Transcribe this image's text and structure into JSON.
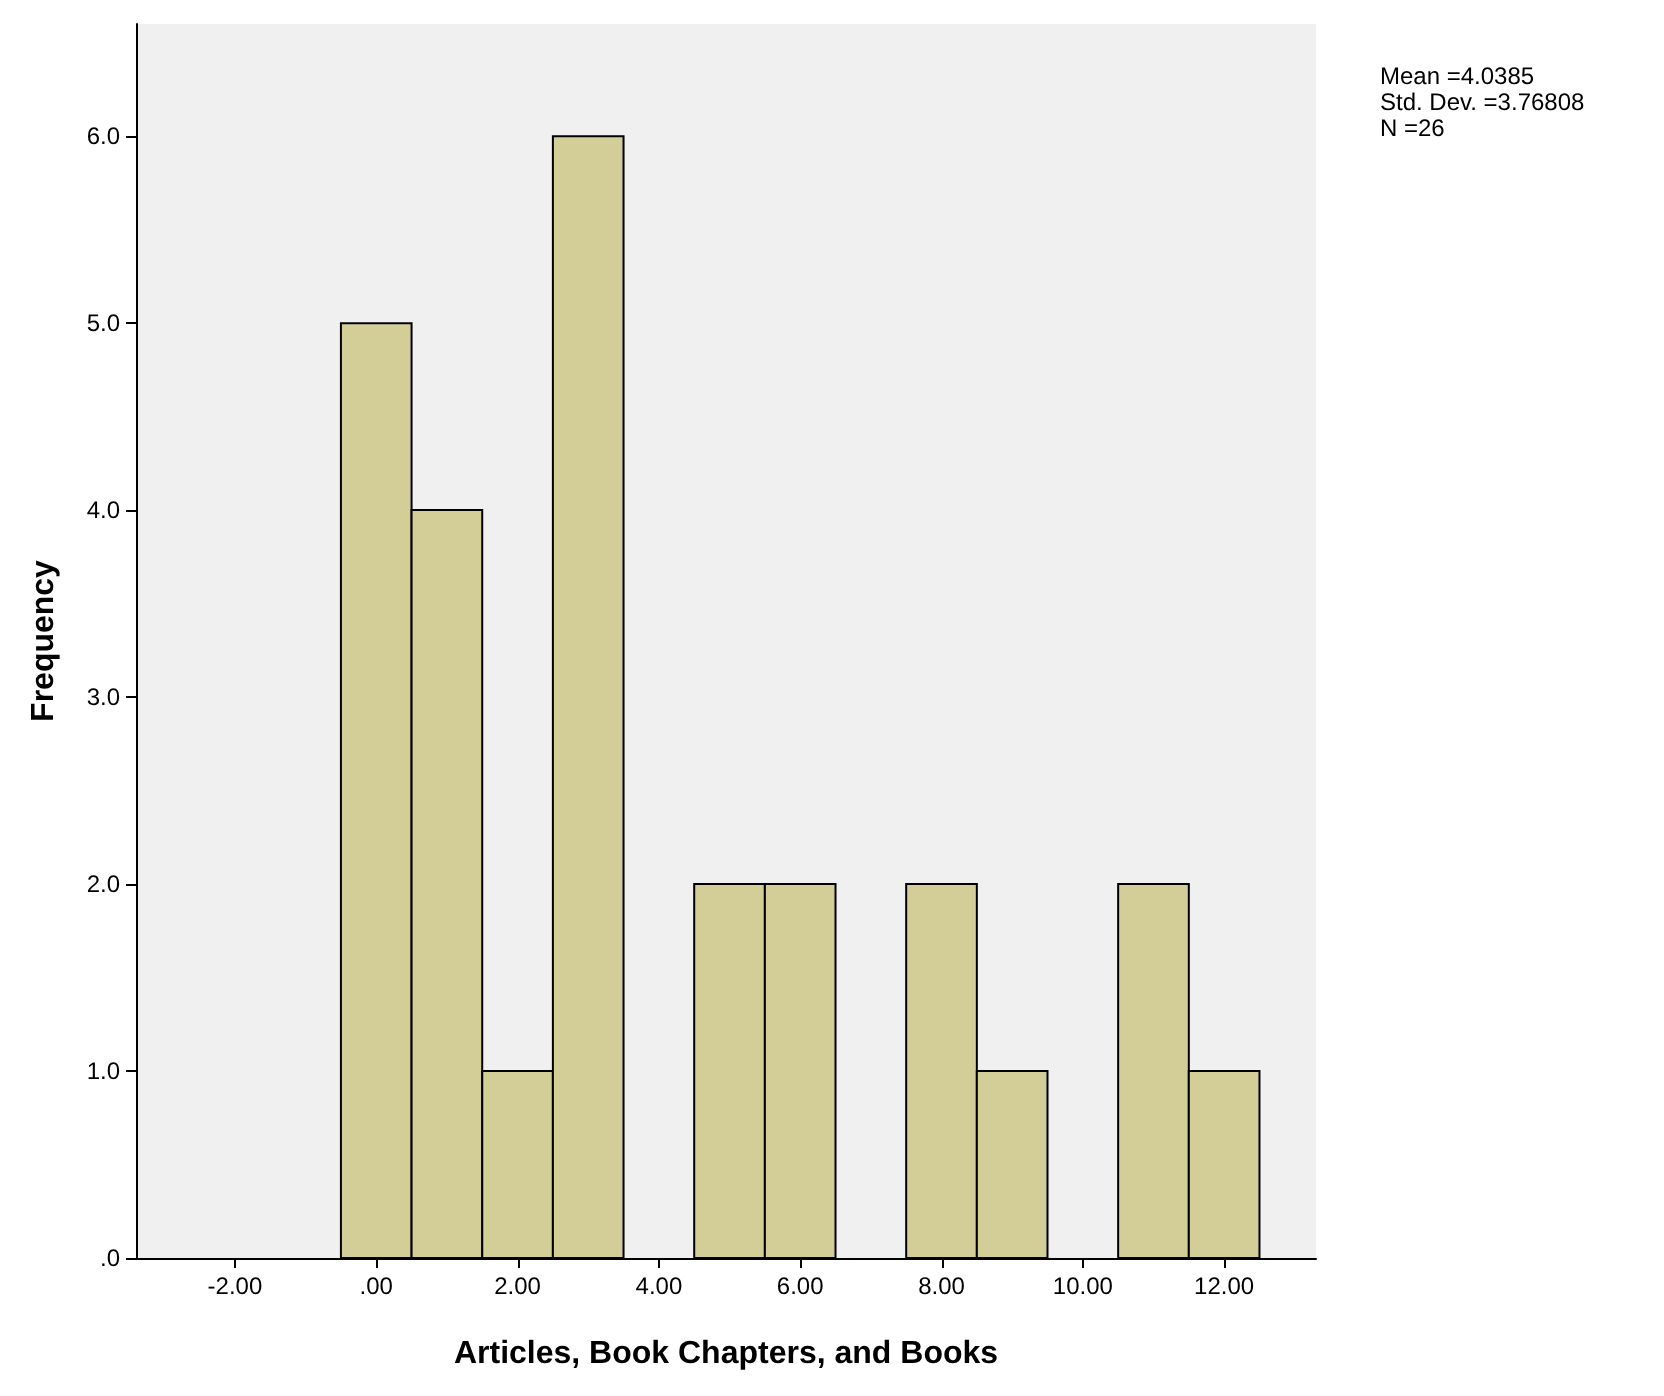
{
  "chart_data": {
    "type": "histogram",
    "xlabel": "Articles, Book Chapters, and Books",
    "ylabel": "Frequency",
    "bins": [
      -0.5,
      0.5,
      1.5,
      2.5,
      3.5,
      4.5,
      5.5,
      6.5,
      7.5,
      8.5,
      9.5,
      10.5,
      11.5,
      12.5
    ],
    "values": [
      5,
      4,
      1,
      6,
      0,
      2,
      2,
      0,
      2,
      1,
      0,
      2,
      1
    ],
    "color": "#d3ce97",
    "xlim": [
      -3.4,
      13.3
    ],
    "xticks": [
      {
        "value": -2,
        "label": "-2.00"
      },
      {
        "value": 0,
        "label": ".00"
      },
      {
        "value": 2,
        "label": "2.00"
      },
      {
        "value": 4,
        "label": "4.00"
      },
      {
        "value": 6,
        "label": "6.00"
      },
      {
        "value": 8,
        "label": "8.00"
      },
      {
        "value": 10,
        "label": "10.00"
      },
      {
        "value": 12,
        "label": "12.00"
      }
    ],
    "ylim": [
      0,
      6.6
    ],
    "yticks": [
      {
        "value": 0,
        "label": ".0"
      },
      {
        "value": 1,
        "label": "1.0"
      },
      {
        "value": 2,
        "label": "2.0"
      },
      {
        "value": 3,
        "label": "3.0"
      },
      {
        "value": 4,
        "label": "4.0"
      },
      {
        "value": 5,
        "label": "5.0"
      },
      {
        "value": 6,
        "label": "6.0"
      }
    ],
    "grid": false,
    "annotations": [
      "Mean =4.0385",
      "Std. Dev. =3.76808",
      "N =26"
    ]
  }
}
